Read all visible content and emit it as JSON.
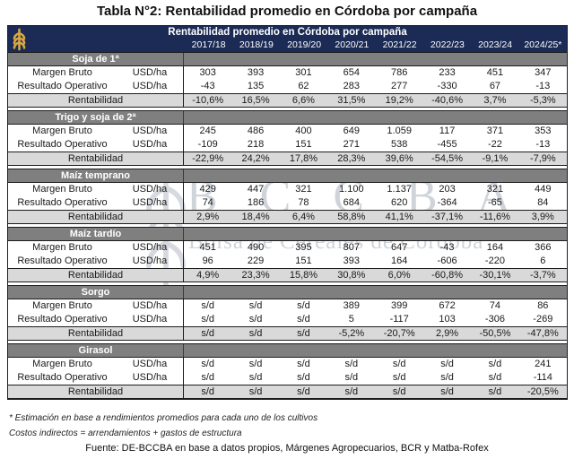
{
  "page_title": "Tabla N°2: Rentabilidad promedio en Córdoba por campaña",
  "table": {
    "header_title": "Rentabilidad promedio en Córdoba por campaña",
    "campaigns": [
      "2017/18",
      "2018/19",
      "2019/20",
      "2020/21",
      "2021/22",
      "2022/23",
      "2023/24",
      "2024/25*"
    ],
    "unit_label": "USD/ha",
    "row_labels": {
      "margen_bruto": "Margen Bruto",
      "resultado_operativo": "Resultado Operativo",
      "rentabilidad": "Rentabilidad"
    },
    "sections": [
      {
        "name": "Soja de 1ª",
        "margen_bruto": [
          "303",
          "393",
          "301",
          "654",
          "786",
          "233",
          "451",
          "347"
        ],
        "resultado_operativo": [
          "-43",
          "135",
          "62",
          "283",
          "277",
          "-330",
          "67",
          "-13"
        ],
        "rentabilidad": [
          "-10,6%",
          "16,5%",
          "6,6%",
          "31,5%",
          "19,2%",
          "-40,6%",
          "3,7%",
          "-5,3%"
        ]
      },
      {
        "name": "Trigo y soja de 2ª",
        "margen_bruto": [
          "245",
          "486",
          "400",
          "649",
          "1.059",
          "117",
          "371",
          "353"
        ],
        "resultado_operativo": [
          "-109",
          "218",
          "151",
          "271",
          "538",
          "-455",
          "-22",
          "-13"
        ],
        "rentabilidad": [
          "-22,9%",
          "24,2%",
          "17,8%",
          "28,3%",
          "39,6%",
          "-54,5%",
          "-9,1%",
          "-7,9%"
        ]
      },
      {
        "name": "Maíz temprano",
        "margen_bruto": [
          "429",
          "447",
          "321",
          "1.100",
          "1.137",
          "203",
          "321",
          "449"
        ],
        "resultado_operativo": [
          "74",
          "186",
          "78",
          "684",
          "620",
          "-364",
          "-65",
          "84"
        ],
        "rentabilidad": [
          "2,9%",
          "18,4%",
          "6,4%",
          "58,8%",
          "41,1%",
          "-37,1%",
          "-11,6%",
          "3,9%"
        ]
      },
      {
        "name": "Maíz tardío",
        "margen_bruto": [
          "451",
          "490",
          "395",
          "807",
          "647",
          "-43",
          "164",
          "366"
        ],
        "resultado_operativo": [
          "96",
          "229",
          "151",
          "393",
          "164",
          "-606",
          "-220",
          "6"
        ],
        "rentabilidad": [
          "4,9%",
          "23,3%",
          "15,8%",
          "30,8%",
          "6,0%",
          "-60,8%",
          "-30,1%",
          "-3,7%"
        ]
      },
      {
        "name": "Sorgo",
        "margen_bruto": [
          "s/d",
          "s/d",
          "s/d",
          "389",
          "399",
          "672",
          "74",
          "86"
        ],
        "resultado_operativo": [
          "s/d",
          "s/d",
          "s/d",
          "5",
          "-117",
          "103",
          "-306",
          "-269"
        ],
        "rentabilidad": [
          "s/d",
          "s/d",
          "s/d",
          "-5,2%",
          "-20,7%",
          "2,9%",
          "-50,5%",
          "-47,8%"
        ]
      },
      {
        "name": "Girasol",
        "margen_bruto": [
          "s/d",
          "s/d",
          "s/d",
          "s/d",
          "s/d",
          "s/d",
          "s/d",
          "241"
        ],
        "resultado_operativo": [
          "s/d",
          "s/d",
          "s/d",
          "s/d",
          "s/d",
          "s/d",
          "s/d",
          "-114"
        ],
        "rentabilidad": [
          "s/d",
          "s/d",
          "s/d",
          "s/d",
          "s/d",
          "s/d",
          "s/d",
          "-20,5%"
        ]
      }
    ]
  },
  "watermark": {
    "acronym": "B C C B A",
    "name": "Bolsa de Cereales de Córdoba"
  },
  "footnotes": [
    "* Estimación en base a rendimientos promedios para cada uno de los cultivos",
    "Costos indirectos = arrendamientos + gastos de estructura"
  ],
  "source": "Fuente: DE-BCCBA en base a datos propios, Márgenes Agropecuarios, BCR y Matba-Rofex",
  "icons": {
    "header_icon": "wheat-spike-icon",
    "watermark_icon": "wheat-spike-icon"
  },
  "colors": {
    "header_navy": "#1b2b55",
    "section_gray": "#7f7f7f",
    "rentabilidad_gray": "#d9d9d9",
    "wheat_gold": "#d9a843",
    "watermark_gray": "#a9b1bd"
  }
}
